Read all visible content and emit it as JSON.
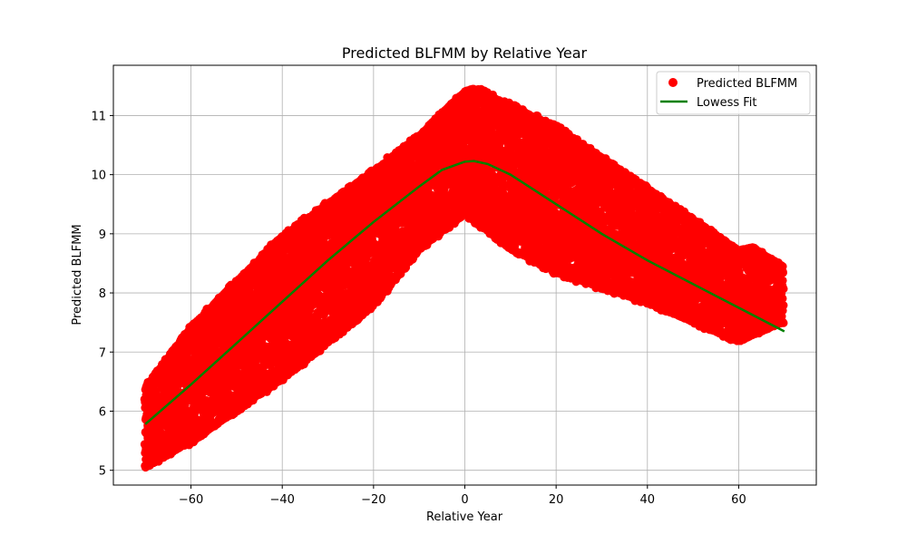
{
  "chart_data": {
    "type": "scatter",
    "title": "Predicted BLFMM by Relative Year",
    "xlabel": "Relative Year",
    "ylabel": "Predicted BLFMM",
    "xlim": [
      -77,
      77
    ],
    "ylim": [
      4.75,
      11.85
    ],
    "xticks": [
      -60,
      -40,
      -20,
      0,
      20,
      40,
      60
    ],
    "yticks": [
      5,
      6,
      7,
      8,
      9,
      10,
      11
    ],
    "xtick_labels": [
      "−60",
      "−40",
      "−20",
      "0",
      "20",
      "40",
      "60"
    ],
    "ytick_labels": [
      "5",
      "6",
      "7",
      "8",
      "9",
      "10",
      "11"
    ],
    "grid": true,
    "legend_position": "top-right",
    "colors": {
      "scatter": "#ff0000",
      "fit": "#008000"
    },
    "series": [
      {
        "name": "Predicted BLFMM",
        "kind": "scatter",
        "band_description": "dense band of points forming an inverted V",
        "upper_edge": [
          [
            -70,
            6.43
          ],
          [
            -60,
            7.45
          ],
          [
            -40,
            9.0
          ],
          [
            -20,
            10.1
          ],
          [
            -10,
            10.7
          ],
          [
            0,
            11.45
          ],
          [
            2,
            11.5
          ],
          [
            20,
            10.85
          ],
          [
            40,
            9.8
          ],
          [
            60,
            8.75
          ],
          [
            63,
            8.8
          ],
          [
            70,
            8.45
          ]
        ],
        "lower_edge": [
          [
            -70,
            5.02
          ],
          [
            -60,
            5.45
          ],
          [
            -40,
            6.5
          ],
          [
            -20,
            7.75
          ],
          [
            -10,
            8.7
          ],
          [
            0,
            9.3
          ],
          [
            10,
            8.7
          ],
          [
            20,
            8.3
          ],
          [
            40,
            7.8
          ],
          [
            60,
            7.15
          ],
          [
            70,
            7.5
          ]
        ]
      },
      {
        "name": "Lowess Fit",
        "kind": "line",
        "x": [
          -70,
          -60,
          -50,
          -40,
          -30,
          -20,
          -10,
          -5,
          0,
          2,
          5,
          10,
          20,
          30,
          40,
          50,
          60,
          70
        ],
        "y": [
          5.78,
          6.45,
          7.15,
          7.85,
          8.55,
          9.2,
          9.8,
          10.08,
          10.22,
          10.23,
          10.18,
          10.0,
          9.5,
          9.0,
          8.55,
          8.15,
          7.75,
          7.35
        ]
      }
    ]
  }
}
